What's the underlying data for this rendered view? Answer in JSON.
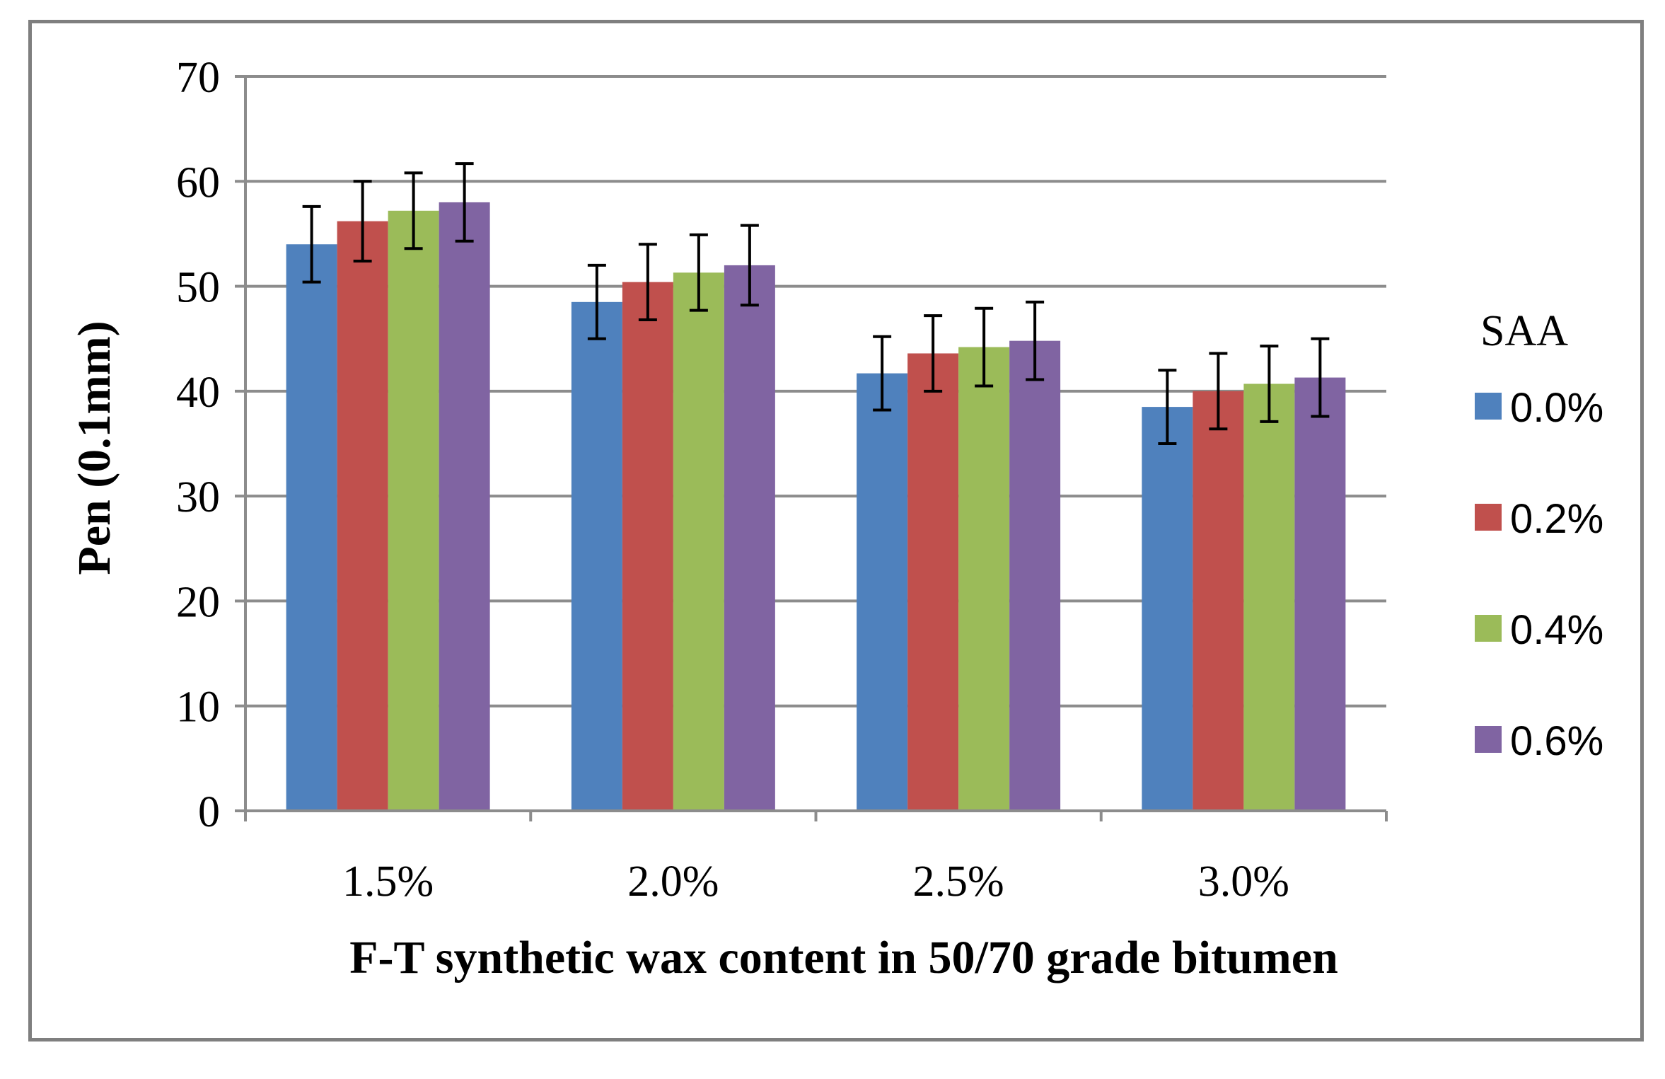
{
  "chart_data": {
    "type": "bar",
    "title": "",
    "xlabel": "F-T synthetic wax content in 50/70 grade bitumen",
    "ylabel": "Pen (0.1mm)",
    "categories": [
      "1.5%",
      "2.0%",
      "2.5%",
      "3.0%"
    ],
    "ylim": [
      0,
      70
    ],
    "yticks": [
      0,
      10,
      20,
      30,
      40,
      50,
      60,
      70
    ],
    "grid": true,
    "legend_title": "SAA",
    "legend_position": "right",
    "series": [
      {
        "name": "0.0%",
        "color": "#4f81bd",
        "values": [
          54.0,
          48.5,
          41.7,
          38.5
        ],
        "errors": [
          3.6,
          3.5,
          3.5,
          3.5
        ]
      },
      {
        "name": "0.2%",
        "color": "#c0504d",
        "values": [
          56.2,
          50.4,
          43.6,
          40.0
        ],
        "errors": [
          3.8,
          3.6,
          3.6,
          3.6
        ]
      },
      {
        "name": "0.4%",
        "color": "#9bbb59",
        "values": [
          57.2,
          51.3,
          44.2,
          40.7
        ],
        "errors": [
          3.6,
          3.6,
          3.7,
          3.6
        ]
      },
      {
        "name": "0.6%",
        "color": "#8064a2",
        "values": [
          58.0,
          52.0,
          44.8,
          41.3
        ],
        "errors": [
          3.7,
          3.8,
          3.7,
          3.7
        ]
      }
    ]
  }
}
